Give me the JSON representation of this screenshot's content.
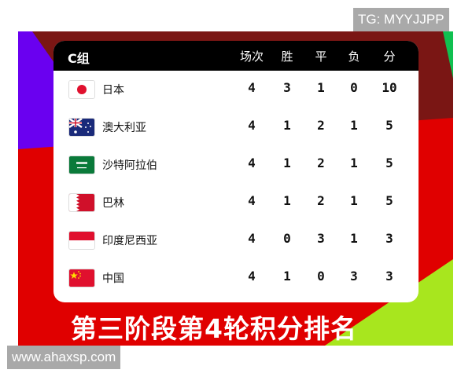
{
  "watermark_top": "TG: MYYJJPP",
  "watermark_bottom": "www.ahaxsp.com",
  "table": {
    "group": "C组",
    "columns": [
      "场次",
      "胜",
      "平",
      "负",
      "分"
    ],
    "rows": [
      {
        "flag": "japan-flag",
        "name": "日本",
        "values": [
          "4",
          "3",
          "1",
          "0",
          "10"
        ]
      },
      {
        "flag": "australia-flag",
        "name": "澳大利亚",
        "values": [
          "4",
          "1",
          "2",
          "1",
          "5"
        ]
      },
      {
        "flag": "saudi-arabia-flag",
        "name": "沙特阿拉伯",
        "values": [
          "4",
          "1",
          "2",
          "1",
          "5"
        ]
      },
      {
        "flag": "bahrain-flag",
        "name": "巴林",
        "values": [
          "4",
          "1",
          "2",
          "1",
          "5"
        ]
      },
      {
        "flag": "indonesia-flag",
        "name": "印度尼西亚",
        "values": [
          "4",
          "0",
          "3",
          "1",
          "3"
        ]
      },
      {
        "flag": "china-flag",
        "name": "中国",
        "values": [
          "4",
          "1",
          "0",
          "3",
          "3"
        ]
      }
    ]
  },
  "caption": "第三阶段第4轮积分排名",
  "colors": {
    "dark_red": "#7a1614",
    "red": "#e00000",
    "purple": "#6a00f0",
    "green": "#10c050",
    "lime": "#a8e61e"
  }
}
